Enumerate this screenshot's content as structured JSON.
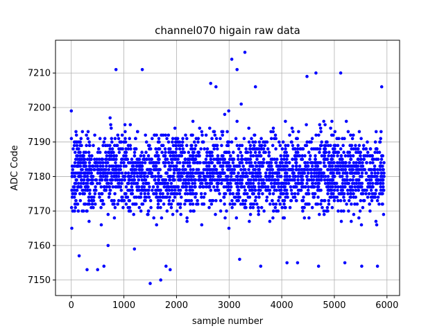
{
  "chart_data": {
    "type": "scatter",
    "title": "channel070 higain raw data",
    "xlabel": "sample number",
    "ylabel": "ADC Code",
    "xlim": [
      -300,
      6240
    ],
    "ylim": [
      7145.5,
      7219.5
    ],
    "xticks": [
      0,
      1000,
      2000,
      3000,
      4000,
      5000,
      6000
    ],
    "yticks": [
      7150,
      7160,
      7170,
      7180,
      7190,
      7200,
      7210
    ],
    "grid": true,
    "marker_color": "#0000ff",
    "series": [
      {
        "values_note": "",
        "x": [
          0,
          60,
          150,
          230,
          300,
          380,
          450,
          520,
          600,
          680,
          750,
          820,
          880,
          950,
          1020,
          1080,
          1150,
          1200,
          1260,
          1320,
          1380,
          1450,
          1500,
          1560,
          1620,
          1700,
          1760,
          1820,
          1880,
          1950,
          2000,
          2060,
          2120,
          2200,
          2260,
          2320,
          2380,
          2440,
          2500,
          2560,
          2620,
          2700,
          2760,
          2800,
          2880,
          2950,
          3000,
          3050,
          3100,
          3150,
          3200,
          3250,
          3300,
          3380,
          3450,
          3500,
          3560,
          3620,
          3700,
          3760,
          3820,
          3880,
          3950,
          4000,
          4060,
          4120,
          4200,
          4250,
          4320,
          4380,
          4440,
          4500,
          4560,
          4620,
          4680,
          4740,
          4800,
          4860,
          4920,
          5000,
          5050,
          5120,
          5180,
          5240,
          5300,
          5360,
          5420,
          5480,
          5540,
          5600,
          5660,
          5720,
          5780,
          5840,
          5900,
          10,
          80,
          170,
          240,
          320,
          400,
          470,
          540,
          620,
          700,
          770,
          840,
          900,
          970,
          1040,
          1100,
          1170,
          1230,
          1290,
          1350,
          1410,
          1470,
          1530,
          1590,
          1650,
          1720,
          1780,
          1840,
          1900,
          1970,
          2030,
          2090,
          2150,
          2220,
          2280,
          2340,
          2400,
          2460,
          2520,
          2580,
          2640,
          2720,
          2780,
          2840,
          2900,
          2970,
          3020,
          3080,
          3130,
          3180,
          3230,
          3280,
          3340,
          3400,
          3470,
          3530,
          3590,
          3650,
          3720,
          3780,
          3840,
          3900,
          3970,
          4030,
          4090,
          4150,
          4220,
          4280,
          4340,
          4400,
          4460,
          4530,
          4590,
          4650,
          4710,
          4770,
          4830,
          4890,
          4950,
          5020,
          5080,
          5150,
          5210,
          5270,
          5330,
          5390,
          5450,
          5510,
          5570,
          5630,
          5690,
          5750,
          5810,
          5870,
          5920,
          850,
          1350,
          1200,
          3050,
          3300,
          3150,
          3500,
          2650,
          2750,
          4650,
          5120,
          4480,
          5900,
          1500,
          1700,
          1800,
          1880,
          3200,
          3600,
          4100,
          4300,
          4700,
          5200,
          5520,
          5820,
          300,
          150,
          500,
          620,
          700
        ],
        "y": [
          7199,
          7190,
          7185,
          7178,
          7170,
          7182,
          7175,
          7188,
          7172,
          7180,
          7195,
          7168,
          7183,
          7176,
          7190,
          7171,
          7185,
          7179,
          7193,
          7174,
          7186,
          7169,
          7181,
          7177,
          7192,
          7173,
          7184,
          7170,
          7188,
          7179,
          7183,
          7175,
          7191,
          7168,
          7186,
          7180,
          7172,
          7194,
          7177,
          7185,
          7171,
          7189,
          7182,
          7176,
          7193,
          7170,
          7187,
          7181,
          7174,
          7196,
          7179,
          7185,
          7172,
          7190,
          7183,
          7176,
          7169,
          7188,
          7180,
          7186,
          7173,
          7192,
          7178,
          7184,
          7171,
          7189,
          7182,
          7175,
          7193,
          7179,
          7186,
          7172,
          7190,
          7181,
          7177,
          7194,
          7170,
          7185,
          7183,
          7176,
          7191,
          7173,
          7187,
          7180,
          7174,
          7192,
          7178,
          7184,
          7171,
          7188,
          7182,
          7175,
          7190,
          7179,
          7186,
          7165,
          7175,
          7181,
          7187,
          7193,
          7172,
          7184,
          7178,
          7190,
          7169,
          7183,
          7177,
          7191,
          7174,
          7186,
          7180,
          7172,
          7188,
          7182,
          7176,
          7192,
          7170,
          7185,
          7179,
          7173,
          7189,
          7183,
          7177,
          7171,
          7194,
          7180,
          7174,
          7187,
          7181,
          7175,
          7190,
          7184,
          7178,
          7172,
          7186,
          7180,
          7193,
          7176,
          7170,
          7185,
          7179,
          7183,
          7187,
          7191,
          7175,
          7201,
          7182,
          7178,
          7188,
          7172,
          7185,
          7181,
          7190,
          7174,
          7183,
          7177,
          7170,
          7189,
          7182,
          7176,
          7192,
          7180,
          7173,
          7186,
          7179,
          7183,
          7190,
          7175,
          7188,
          7181,
          7171,
          7185,
          7178,
          7192,
          7174,
          7187,
          7180,
          7184,
          7170,
          7189,
          7183,
          7177,
          7191,
          7173,
          7186,
          7180,
          7174,
          7188,
          7182,
          7176,
          7211,
          7211,
          7159,
          7214,
          7216,
          7211,
          7206,
          7207,
          7206,
          7210,
          7210,
          7209,
          7206,
          7149,
          7150,
          7154,
          7153,
          7156,
          7154,
          7155,
          7155,
          7154,
          7155,
          7154,
          7154,
          7153,
          7157,
          7153,
          7154,
          7160
        ]
      }
    ]
  }
}
